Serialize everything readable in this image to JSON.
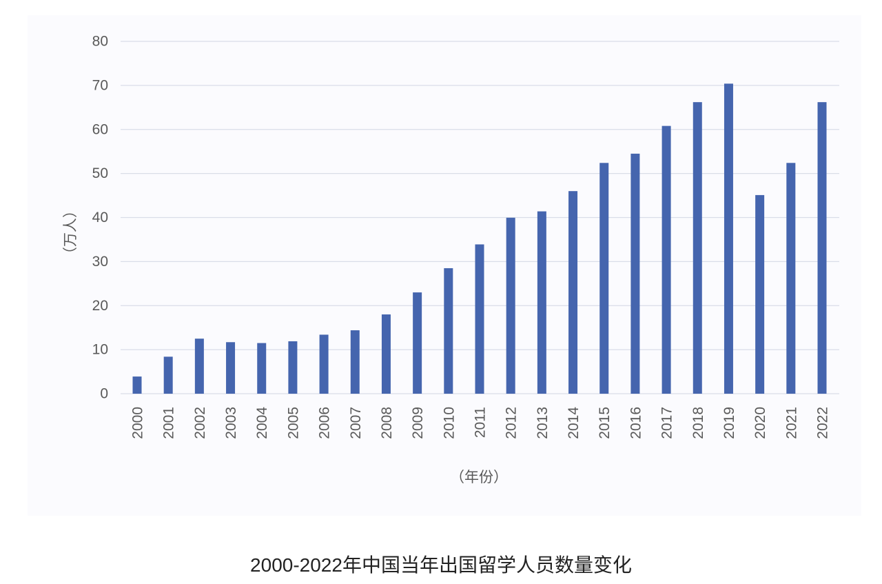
{
  "caption": "2000-2022年中国当年出国留学人员数量变化",
  "chart_data": {
    "type": "bar",
    "title": "",
    "xlabel": "（年份）",
    "ylabel": "（万人）",
    "ylim": [
      0,
      80
    ],
    "yticks": [
      0,
      10,
      20,
      30,
      40,
      50,
      60,
      70,
      80
    ],
    "grid": true,
    "legend": "none",
    "bar_color": "#4565ae",
    "grid_color": "#d9dde8",
    "categories": [
      "2000",
      "2001",
      "2002",
      "2003",
      "2004",
      "2005",
      "2006",
      "2007",
      "2008",
      "2009",
      "2010",
      "2011",
      "2012",
      "2013",
      "2014",
      "2015",
      "2016",
      "2017",
      "2018",
      "2019",
      "2020",
      "2021",
      "2022"
    ],
    "values": [
      3.9,
      8.4,
      12.5,
      11.7,
      11.5,
      11.9,
      13.4,
      14.4,
      18.0,
      23.0,
      28.5,
      33.9,
      39.96,
      41.4,
      46.0,
      52.4,
      54.5,
      60.8,
      66.2,
      70.4,
      45.1,
      52.4,
      66.2
    ]
  }
}
